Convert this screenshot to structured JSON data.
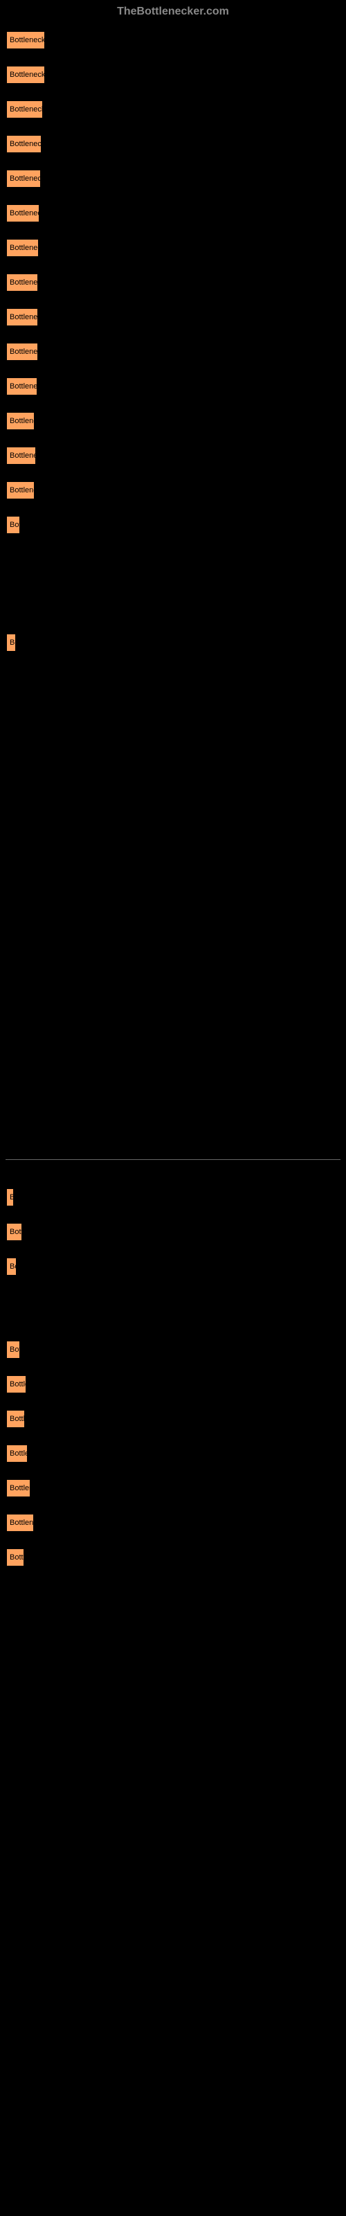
{
  "header": {
    "site": "TheBottlenecker.com"
  },
  "chart": {
    "type": "bar",
    "bar_color": "#ffa35f",
    "bar_border_color": "#000000",
    "background_color": "#000000",
    "text_color": "#000000",
    "header_color": "#888888",
    "max_width": 484,
    "bars_top": [
      {
        "label": "Bottleneck re",
        "width": 58
      },
      {
        "label": "Bottleneck re",
        "width": 58
      },
      {
        "label": "Bottleneck r",
        "width": 55
      },
      {
        "label": "Bottleneck",
        "width": 53
      },
      {
        "label": "Bottleneck",
        "width": 52
      },
      {
        "label": "Bottleneck",
        "width": 50
      },
      {
        "label": "Bottleneck",
        "width": 49
      },
      {
        "label": "Bottleneck",
        "width": 48
      },
      {
        "label": "Bottleneck",
        "width": 48
      },
      {
        "label": "Bottleneck",
        "width": 48
      },
      {
        "label": "Bottlenec",
        "width": 47
      },
      {
        "label": "Bottlene",
        "width": 43
      },
      {
        "label": "Bottlenec",
        "width": 45
      },
      {
        "label": "Bottlene",
        "width": 43
      },
      {
        "label": "Bot",
        "width": 22
      },
      {
        "label": "Bo",
        "width": 16
      }
    ],
    "bars_bottom": [
      {
        "label": "B",
        "width": 13
      },
      {
        "label": "Bott",
        "width": 25
      },
      {
        "label": "Bo",
        "width": 17
      },
      {
        "label": "Bot",
        "width": 22
      },
      {
        "label": "Bottle",
        "width": 31
      },
      {
        "label": "Bottl",
        "width": 29
      },
      {
        "label": "Bottle",
        "width": 33
      },
      {
        "label": "Bottlen",
        "width": 37
      },
      {
        "label": "Bottlene",
        "width": 42
      },
      {
        "label": "Bottl",
        "width": 28
      }
    ]
  }
}
